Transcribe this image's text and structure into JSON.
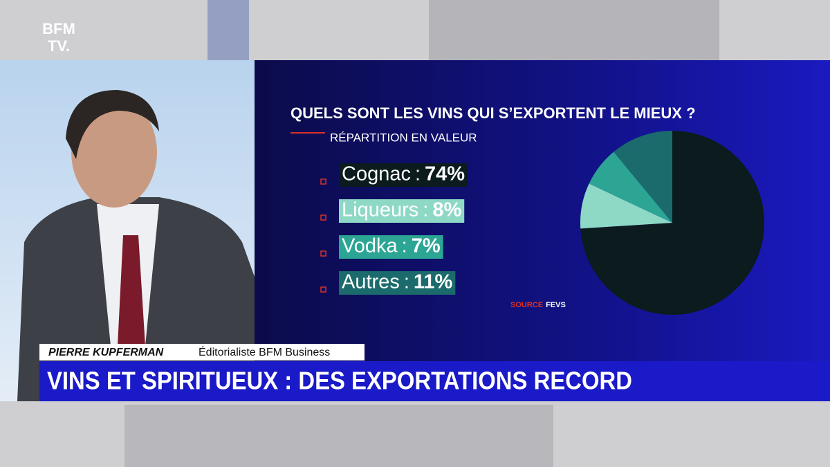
{
  "chart_data": {
    "type": "pie",
    "title": "QUELS SONT LES VINS QUI S’EXPORTENT LE MIEUX ?",
    "subtitle": "RÉPARTITION EN VALEUR",
    "categories": [
      "Cognac",
      "Liqueurs",
      "Vodka",
      "Autres"
    ],
    "values": [
      74,
      8,
      7,
      11
    ],
    "value_labels": [
      "74%",
      "8%",
      "7%",
      "11%"
    ],
    "colors": [
      "#0b1b1e",
      "#8ed8c6",
      "#2ca594",
      "#1c6b6c"
    ],
    "legend_separator": ":",
    "source_label": "SOURCE",
    "source": "FEVS"
  },
  "broadcast": {
    "logo_top": "BFM",
    "logo_bottom": "TV.",
    "speaker_name": "PIERRE KUPFERMAN",
    "speaker_role": "Éditorialiste BFM Business",
    "headline": "VINS ET SPIRITUEUX : DES EXPORTATIONS RECORD"
  }
}
